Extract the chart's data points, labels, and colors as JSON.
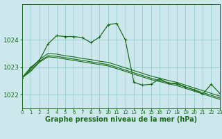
{
  "background_color": "#cce8ec",
  "grid_color": "#99ccd0",
  "line_color": "#1a6b1a",
  "xlabel": "Graphe pression niveau de la mer (hPa)",
  "xlabel_fontsize": 7.0,
  "xtick_labels": [
    "0",
    "1",
    "2",
    "3",
    "4",
    "5",
    "6",
    "7",
    "8",
    "9",
    "10",
    "11",
    "12",
    "13",
    "14",
    "15",
    "16",
    "17",
    "18",
    "19",
    "20",
    "21",
    "22",
    "23"
  ],
  "yticks": [
    1022,
    1023,
    1024
  ],
  "ylim": [
    1021.5,
    1025.3
  ],
  "xlim": [
    0,
    23
  ],
  "series0": [
    1022.62,
    1023.0,
    1023.25,
    1023.85,
    1024.15,
    1024.12,
    1024.12,
    1024.08,
    1023.9,
    1024.1,
    1024.55,
    1024.6,
    1024.0,
    1022.45,
    1022.35,
    1022.38,
    1022.58,
    1022.42,
    1022.42,
    1022.28,
    1022.18,
    1022.02,
    1022.38,
    1022.05
  ],
  "series1": [
    1022.62,
    1022.95,
    1023.28,
    1023.5,
    1023.48,
    1023.42,
    1023.38,
    1023.32,
    1023.28,
    1023.22,
    1023.18,
    1023.08,
    1022.98,
    1022.88,
    1022.78,
    1022.68,
    1022.6,
    1022.52,
    1022.45,
    1022.35,
    1022.25,
    1022.15,
    1022.05,
    1021.95
  ],
  "series2": [
    1022.62,
    1022.9,
    1023.22,
    1023.42,
    1023.4,
    1023.35,
    1023.3,
    1023.25,
    1023.2,
    1023.15,
    1023.1,
    1023.0,
    1022.9,
    1022.8,
    1022.7,
    1022.6,
    1022.52,
    1022.44,
    1022.38,
    1022.28,
    1022.18,
    1022.08,
    1021.98,
    1021.88
  ],
  "series3": [
    1022.62,
    1022.85,
    1023.18,
    1023.38,
    1023.35,
    1023.3,
    1023.25,
    1023.2,
    1023.15,
    1023.1,
    1023.05,
    1022.95,
    1022.85,
    1022.75,
    1022.65,
    1022.55,
    1022.48,
    1022.4,
    1022.33,
    1022.23,
    1022.13,
    1022.03,
    1021.93,
    1021.83
  ]
}
